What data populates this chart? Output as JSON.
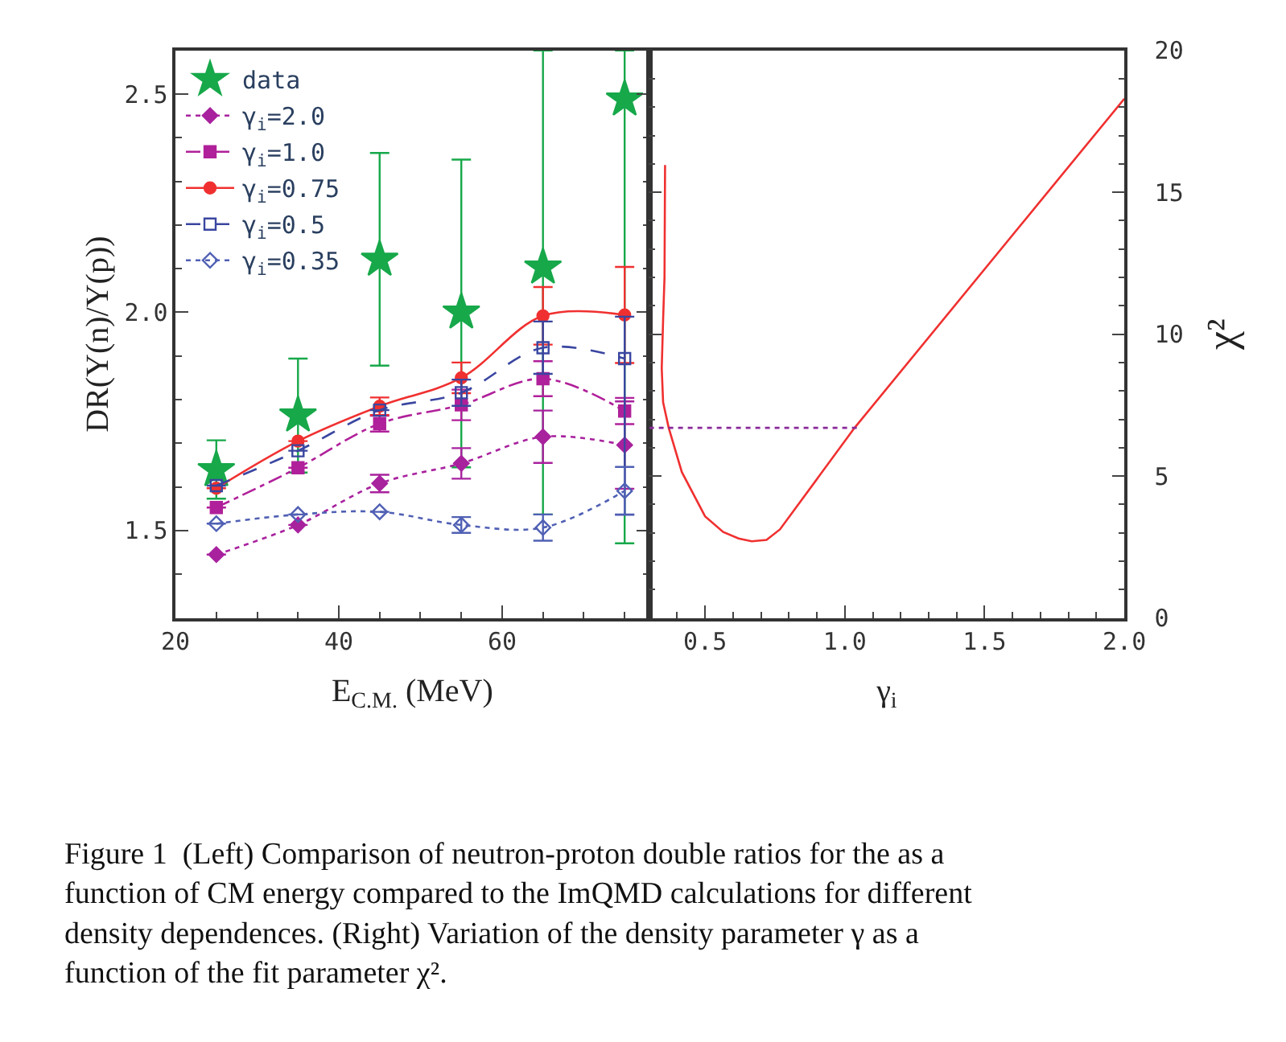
{
  "chart_data": [
    {
      "type": "line",
      "xlabel": "E$_{C.M.}$ (MeV)",
      "ylabel": "DR(Y(n)/Y(p))",
      "x": [
        25,
        35,
        45,
        55,
        65,
        75
      ],
      "xlim": [
        20,
        78
      ],
      "xticks": [
        20,
        40,
        60
      ],
      "ylim": [
        1.3,
        2.6
      ],
      "yticks": [
        {
          "value": 1.5,
          "label": "1.5"
        },
        {
          "value": 2.0,
          "label": "2.0"
        },
        {
          "value": 2.5,
          "label": "2.5"
        }
      ],
      "legend": "top left",
      "series": [
        {
          "name": "data",
          "type": "scatter",
          "marker": "star",
          "color": "#17a84a",
          "values": [
            1.639,
            1.764,
            2.121,
            2.0,
            2.103,
            2.488
          ],
          "errors": [
            [
              1.573,
              1.707
            ],
            [
              1.633,
              1.894
            ],
            [
              1.878,
              2.365
            ],
            [
              1.645,
              2.35
            ],
            [
              1.537,
              2.6
            ],
            [
              1.471,
              2.6
            ]
          ]
        },
        {
          "name": "γ$_{i}$=2.0",
          "marker": "diamond",
          "line_style": "dotted",
          "color": "#a8229e",
          "values": [
            1.445,
            1.513,
            1.608,
            1.654,
            1.715,
            1.696
          ],
          "errors": [
            null,
            null,
            0.02,
            0.035,
            0.06,
            0.1
          ]
        },
        {
          "name": "γ$_{i}$=1.0",
          "marker": "square",
          "line_style": "dashdot",
          "color": "#b0209a",
          "values": [
            1.553,
            1.644,
            1.745,
            1.788,
            1.848,
            1.774
          ],
          "errors": [
            null,
            null,
            0.018,
            0.035,
            0.04,
            0.03
          ]
        },
        {
          "name": "γ$_{i}$=0.75",
          "marker": "circle",
          "line_style": "solid",
          "color": "#f03030",
          "values": [
            1.597,
            1.705,
            1.785,
            1.85,
            1.992,
            1.994
          ],
          "errors": [
            null,
            null,
            0.02,
            0.035,
            0.066,
            0.11
          ]
        },
        {
          "name": "γ$_{i}$=0.5",
          "marker": "square-open",
          "line_style": "dashed",
          "color": "#3a46a0",
          "values": [
            1.603,
            1.683,
            1.776,
            1.816,
            1.919,
            1.894
          ],
          "errors": [
            null,
            null,
            null,
            0.03,
            0.06,
            [
              1.537,
              1.99
            ]
          ]
        },
        {
          "name": "γ$_{i}$=0.35",
          "marker": "diamond-open",
          "line_style": "dotted",
          "color": "#5060b4",
          "values": [
            1.516,
            1.537,
            1.543,
            1.513,
            1.507,
            1.591
          ],
          "errors": [
            null,
            null,
            null,
            0.018,
            0.03,
            0.055
          ]
        }
      ],
      "annotations": [
        "Figure 1  (Left) Comparison of neutron-proton double ratios for the as a function of CM energy compared to the ImQMD calculations for different density dependences. (Right) Variation of the density parameter γ as a function of the fit parameter χ²."
      ]
    },
    {
      "type": "line",
      "xlabel": "γ$_{i}$",
      "y2label": "χ²",
      "xlim": [
        0.3,
        2.0
      ],
      "xticks": [
        0.5,
        {
          "value": 1.0,
          "label": "1.0"
        },
        1.5,
        {
          "value": 2.0,
          "label": "2.0"
        }
      ],
      "y2lim": [
        0,
        20
      ],
      "y2ticks": [
        0,
        5,
        10,
        15,
        20
      ],
      "series": [
        {
          "axis": "y2",
          "line_style": "solid",
          "color": "#f03030",
          "x": [
            0.357,
            0.355,
            0.35,
            0.345,
            0.35,
            0.37,
            0.417,
            0.5,
            0.565,
            0.62,
            0.667,
            0.72,
            0.768,
            1.035,
            2.0
          ],
          "values": [
            15.96,
            12.0,
            10.5,
            8.8,
            7.6,
            6.7,
            5.14,
            3.58,
            3.03,
            2.8,
            2.7,
            2.75,
            3.12,
            6.7,
            18.3
          ]
        },
        {
          "axis": "y2",
          "line_style": "dotted",
          "color": "#8a2a9a",
          "x": [
            0.3,
            1.05
          ],
          "values": [
            6.7,
            6.7
          ]
        }
      ]
    }
  ]
}
